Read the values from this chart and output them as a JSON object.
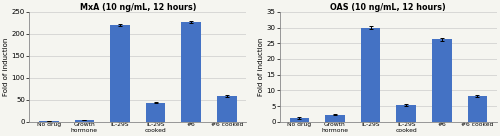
{
  "chart1": {
    "title": "MxA (10 ng/mL, 12 hours)",
    "ylabel": "Fold of induction",
    "ylim": [
      0,
      250
    ],
    "yticks": [
      0,
      50,
      100,
      150,
      200,
      250
    ],
    "categories": [
      "No drug",
      "Growth\nhormone",
      "IL-29S",
      "IL-29S\ncooked",
      "#6",
      "#6 cooked"
    ],
    "values": [
      2.0,
      3.5,
      220,
      43,
      227,
      58
    ],
    "errors": [
      0.5,
      0.5,
      3.0,
      1.5,
      2.5,
      2.0
    ],
    "bar_color": "#4472C4"
  },
  "chart2": {
    "title": "OAS (10 ng/mL, 12 hours)",
    "ylabel": "Fold of induction",
    "ylim": [
      0,
      35
    ],
    "yticks": [
      0,
      5,
      10,
      15,
      20,
      25,
      30,
      35
    ],
    "categories": [
      "No drug",
      "Growth\nhormone",
      "IL-29S",
      "IL-29S\ncooked",
      "#6",
      "#6 cooked"
    ],
    "values": [
      1.1,
      2.3,
      30.0,
      5.4,
      26.2,
      8.2
    ],
    "errors": [
      0.25,
      0.2,
      0.5,
      0.35,
      0.5,
      0.35
    ],
    "bar_color": "#4472C4"
  },
  "fig_width": 5.0,
  "fig_height": 1.36,
  "dpi": 100,
  "background_color": "#f5f5f0"
}
